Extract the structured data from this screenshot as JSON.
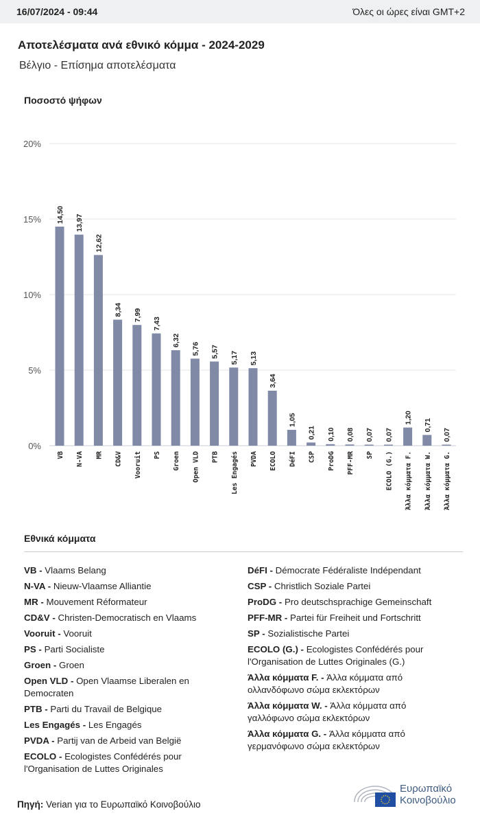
{
  "header": {
    "datetime": "16/07/2024 - 09:44",
    "timezone": "Όλες οι ώρες είναι GMT+2"
  },
  "title": "Αποτελέσματα ανά εθνικό κόμμα - 2024-2029",
  "subtitle": "Βέλγιο - Επίσημα αποτελέσματα",
  "chart_data": {
    "type": "bar",
    "ylabel": "Ποσοστό ψήφων",
    "ylim": [
      0,
      20
    ],
    "yticks": [
      "0%",
      "5%",
      "10%",
      "15%",
      "20%"
    ],
    "grid": true,
    "bar_color": "#8089a6",
    "categories": [
      "VB",
      "N-VA",
      "MR",
      "CD&V",
      "Vooruit",
      "PS",
      "Groen",
      "Open VLD",
      "PTB",
      "Les Engagés",
      "PVDA",
      "ECOLO",
      "DéFI",
      "CSP",
      "ProDG",
      "PFF-MR",
      "SP",
      "ECOLO (G.)",
      "Άλλα κόμματα F.",
      "Άλλα κόμματα W.",
      "Άλλα κόμματα G."
    ],
    "values": [
      14.5,
      13.97,
      12.62,
      8.34,
      7.99,
      7.43,
      6.32,
      5.76,
      5.57,
      5.17,
      5.13,
      3.64,
      1.05,
      0.21,
      0.1,
      0.08,
      0.07,
      0.07,
      1.2,
      0.71,
      0.07
    ],
    "labels": [
      "14,50",
      "13,97",
      "12,62",
      "8,34",
      "7,99",
      "7,43",
      "6,32",
      "5,76",
      "5,57",
      "5,17",
      "5,13",
      "3,64",
      "1,05",
      "0,21",
      "0,10",
      "0,08",
      "0,07",
      "0,07",
      "1,20",
      "0,71",
      "0,07"
    ]
  },
  "legend": {
    "title": "Εθνικά κόμματα",
    "left": [
      [
        "VB",
        "Vlaams Belang"
      ],
      [
        "N-VA",
        "Nieuw-Vlaamse Alliantie"
      ],
      [
        "MR",
        "Mouvement Réformateur"
      ],
      [
        "CD&V",
        "Christen-Democratisch en Vlaams"
      ],
      [
        "Vooruit",
        "Vooruit"
      ],
      [
        "PS",
        "Parti Socialiste"
      ],
      [
        "Groen",
        "Groen"
      ],
      [
        "Open VLD",
        "Open Vlaamse Liberalen en Democraten"
      ],
      [
        "PTB",
        "Parti du Travail de Belgique"
      ],
      [
        "Les Engagés",
        "Les Engagés"
      ],
      [
        "PVDA",
        "Partij van de Arbeid van België"
      ],
      [
        "ECOLO",
        "Ecologistes Confédérés pour l'Organisation de Luttes Originales"
      ]
    ],
    "right": [
      [
        "DéFI",
        "Démocrate Fédéraliste Indépendant"
      ],
      [
        "CSP",
        "Christlich Soziale Partei"
      ],
      [
        "ProDG",
        "Pro deutschsprachige Gemeinschaft"
      ],
      [
        "PFF-MR",
        "Partei für Freiheit und Fortschritt"
      ],
      [
        "SP",
        "Sozialistische Partei"
      ],
      [
        "ECOLO (G.)",
        "Ecologistes Confédérés pour l'Organisation de Luttes Originales (G.)"
      ],
      [
        "Άλλα κόμματα F.",
        "Άλλα κόμματα από ολλανδόφωνο σώμα εκλεκτόρων"
      ],
      [
        "Άλλα κόμματα W.",
        "Άλλα κόμματα από γαλλόφωνο σώμα εκλεκτόρων"
      ],
      [
        "Άλλα κόμματα G.",
        "Άλλα κόμματα από γερμανόφωνο σώμα εκλεκτόρων"
      ]
    ]
  },
  "source": {
    "label": "Πηγή:",
    "text": "Verian για το Ευρωπαϊκό Κοινοβούλιο"
  },
  "logo": {
    "line1": "Ευρωπαϊκό",
    "line2": "Κοινοβούλιο"
  }
}
